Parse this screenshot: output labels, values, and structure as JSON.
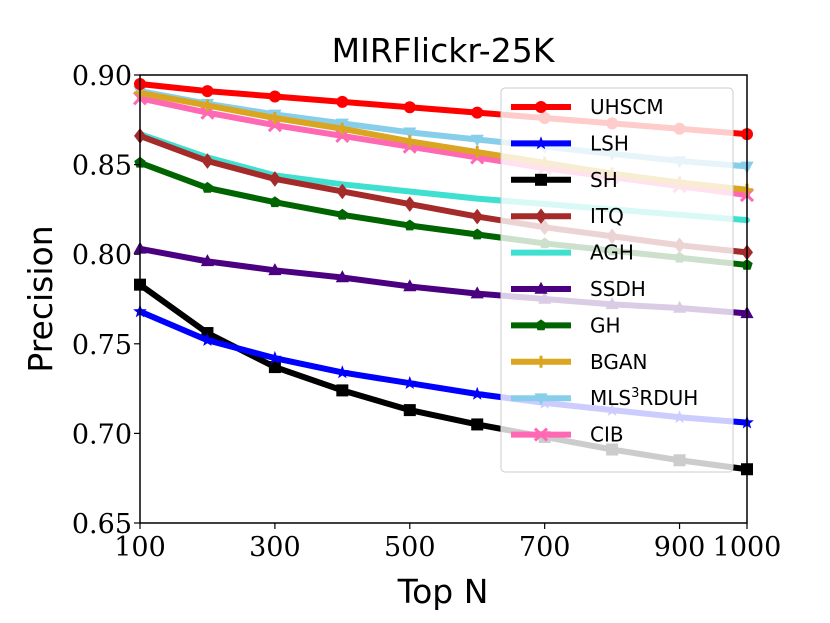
{
  "chart_data": {
    "type": "line",
    "title": "MIRFlickr-25K",
    "xlabel": "Top N",
    "ylabel": "Precision",
    "xlim": [
      100,
      1000
    ],
    "ylim": [
      0.65,
      0.9
    ],
    "x": [
      100,
      200,
      300,
      400,
      500,
      600,
      700,
      800,
      900,
      1000
    ],
    "xticks": [
      100,
      300,
      500,
      700,
      900,
      1000
    ],
    "xtick_labels": [
      "100",
      "300",
      "500",
      "700",
      "900",
      "1000"
    ],
    "yticks": [
      0.65,
      0.7,
      0.75,
      0.8,
      0.85,
      0.9
    ],
    "ytick_labels": [
      "0.65",
      "0.70",
      "0.75",
      "0.80",
      "0.85",
      "0.90"
    ],
    "legend_position": "right",
    "series": [
      {
        "name": "UHSCM",
        "label_main": "UHSCM",
        "label_sup": "",
        "label_tail": "",
        "color": "#ff0000",
        "marker": "circle",
        "values": [
          0.895,
          0.891,
          0.888,
          0.885,
          0.882,
          0.879,
          0.876,
          0.873,
          0.87,
          0.867
        ]
      },
      {
        "name": "LSH",
        "label_main": "LSH",
        "label_sup": "",
        "label_tail": "",
        "color": "#0000ff",
        "marker": "star",
        "values": [
          0.768,
          0.752,
          0.742,
          0.734,
          0.728,
          0.722,
          0.717,
          0.713,
          0.709,
          0.706
        ]
      },
      {
        "name": "SH",
        "label_main": "SH",
        "label_sup": "",
        "label_tail": "",
        "color": "#000000",
        "marker": "square",
        "values": [
          0.783,
          0.756,
          0.737,
          0.724,
          0.713,
          0.705,
          0.698,
          0.691,
          0.685,
          0.68
        ]
      },
      {
        "name": "ITQ",
        "label_main": "ITQ",
        "label_sup": "",
        "label_tail": "",
        "color": "#a52a2a",
        "marker": "diamond",
        "values": [
          0.866,
          0.852,
          0.842,
          0.835,
          0.828,
          0.821,
          0.815,
          0.81,
          0.805,
          0.801
        ]
      },
      {
        "name": "AGH",
        "label_main": "AGH",
        "label_sup": "",
        "label_tail": "",
        "color": "#40e0d0",
        "marker": "none",
        "values": [
          0.867,
          0.854,
          0.844,
          0.839,
          0.835,
          0.831,
          0.828,
          0.825,
          0.822,
          0.819
        ]
      },
      {
        "name": "SSDH",
        "label_main": "SSDH",
        "label_sup": "",
        "label_tail": "",
        "color": "#4b0082",
        "marker": "triangle",
        "values": [
          0.803,
          0.796,
          0.791,
          0.787,
          0.782,
          0.778,
          0.775,
          0.772,
          0.77,
          0.767
        ]
      },
      {
        "name": "GH",
        "label_main": "GH",
        "label_sup": "",
        "label_tail": "",
        "color": "#006400",
        "marker": "pentagon",
        "values": [
          0.851,
          0.837,
          0.829,
          0.822,
          0.816,
          0.811,
          0.806,
          0.802,
          0.798,
          0.794
        ]
      },
      {
        "name": "BGAN",
        "label_main": "BGAN",
        "label_sup": "",
        "label_tail": "",
        "color": "#daa520",
        "marker": "plus",
        "values": [
          0.89,
          0.883,
          0.876,
          0.87,
          0.863,
          0.857,
          0.851,
          0.845,
          0.84,
          0.836
        ]
      },
      {
        "name": "MLS3RDUH",
        "label_main": "MLS",
        "label_sup": "3",
        "label_tail": "RDUH",
        "color": "#87ceeb",
        "marker": "triangle-down",
        "values": [
          0.891,
          0.884,
          0.878,
          0.873,
          0.868,
          0.864,
          0.86,
          0.856,
          0.852,
          0.849
        ]
      },
      {
        "name": "CIB",
        "label_main": "CIB",
        "label_sup": "",
        "label_tail": "",
        "color": "#ff69b4",
        "marker": "x",
        "values": [
          0.887,
          0.879,
          0.872,
          0.866,
          0.86,
          0.854,
          0.848,
          0.843,
          0.838,
          0.833
        ]
      }
    ]
  }
}
